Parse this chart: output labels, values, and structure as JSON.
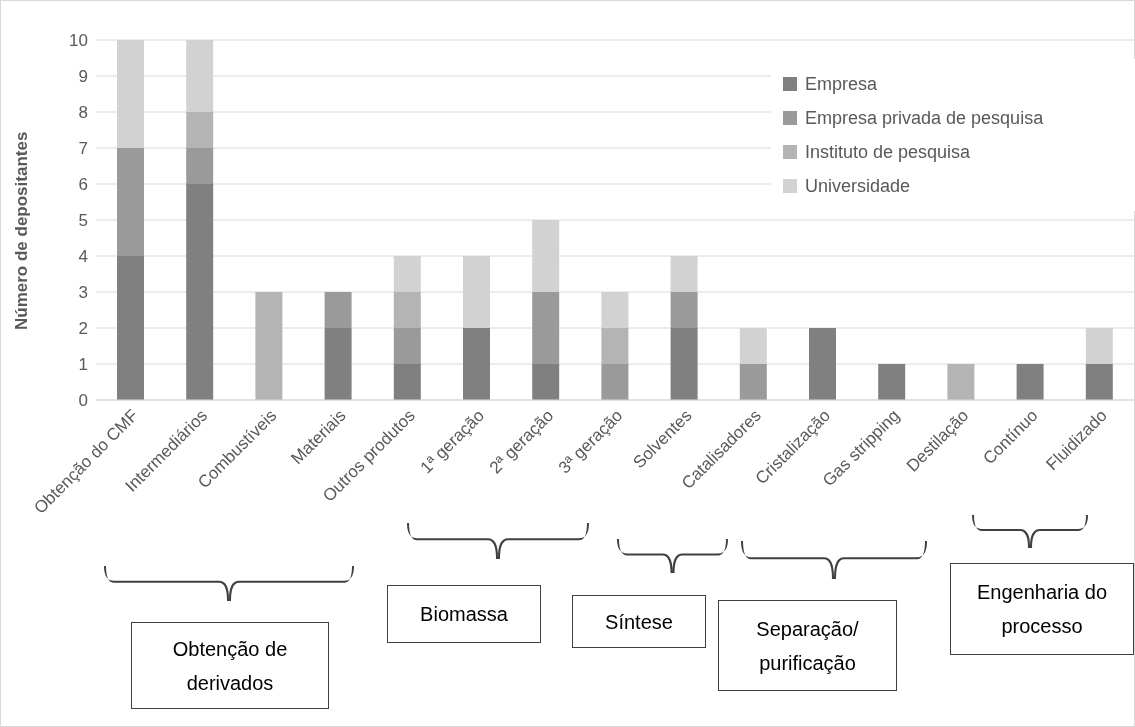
{
  "chart_data": {
    "type": "bar",
    "stacked": true,
    "ylabel": "Número de depositantes",
    "categories": [
      "Obtenção do CMF",
      "Intermediários",
      "Combustíveis",
      "Materiais",
      "Outros produtos",
      "1ª geração",
      "2ª geração",
      "3ª geração",
      "Solventes",
      "Catalisadores",
      "Cristalização",
      "Gas stripping",
      "Destilação",
      "Contínuo",
      "Fluidizado"
    ],
    "series": [
      {
        "name": "Empresa",
        "color": "#808080",
        "values": [
          4,
          6,
          0,
          2,
          1,
          2,
          1,
          0,
          2,
          0,
          2,
          1,
          0,
          1,
          1
        ]
      },
      {
        "name": "Empresa privada de pesquisa",
        "color": "#9a9a9a",
        "values": [
          3,
          1,
          0,
          1,
          1,
          0,
          2,
          1,
          1,
          1,
          0,
          0,
          0,
          0,
          0
        ]
      },
      {
        "name": "Instituto de pesquisa",
        "color": "#b4b4b4",
        "values": [
          0,
          1,
          3,
          0,
          1,
          0,
          0,
          1,
          0,
          0,
          0,
          0,
          1,
          0,
          0
        ]
      },
      {
        "name": "Universidade",
        "color": "#d2d2d2",
        "values": [
          3,
          2,
          0,
          0,
          1,
          2,
          2,
          1,
          1,
          1,
          0,
          0,
          0,
          0,
          1
        ]
      }
    ],
    "ylim": [
      0,
      10
    ],
    "yticks": [
      0,
      1,
      2,
      3,
      4,
      5,
      6,
      7,
      8,
      9,
      10
    ],
    "grid": "y",
    "legend": "top right",
    "annotations": [
      "Obtenção de derivados",
      "Biomassa",
      "Síntese",
      "Separação/ purificação",
      "Engenharia do processo"
    ]
  }
}
